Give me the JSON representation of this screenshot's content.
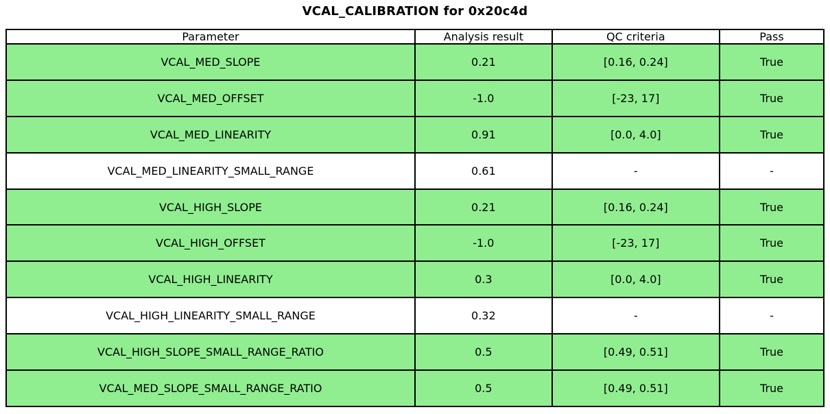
{
  "title": "VCAL_CALIBRATION for 0x20c4d",
  "colors": {
    "pass_row_bg": "#90ee90",
    "neutral_row_bg": "#ffffff",
    "border": "#000000",
    "text": "#000000"
  },
  "table": {
    "headers": [
      "Parameter",
      "Analysis result",
      "QC criteria",
      "Pass"
    ],
    "rows": [
      {
        "parameter": "VCAL_MED_SLOPE",
        "analysis_result": "0.21",
        "qc_criteria": "[0.16, 0.24]",
        "pass": "True",
        "highlight": true
      },
      {
        "parameter": "VCAL_MED_OFFSET",
        "analysis_result": "-1.0",
        "qc_criteria": "[-23, 17]",
        "pass": "True",
        "highlight": true
      },
      {
        "parameter": "VCAL_MED_LINEARITY",
        "analysis_result": "0.91",
        "qc_criteria": "[0.0, 4.0]",
        "pass": "True",
        "highlight": true
      },
      {
        "parameter": "VCAL_MED_LINEARITY_SMALL_RANGE",
        "analysis_result": "0.61",
        "qc_criteria": "-",
        "pass": "-",
        "highlight": false
      },
      {
        "parameter": "VCAL_HIGH_SLOPE",
        "analysis_result": "0.21",
        "qc_criteria": "[0.16, 0.24]",
        "pass": "True",
        "highlight": true
      },
      {
        "parameter": "VCAL_HIGH_OFFSET",
        "analysis_result": "-1.0",
        "qc_criteria": "[-23, 17]",
        "pass": "True",
        "highlight": true
      },
      {
        "parameter": "VCAL_HIGH_LINEARITY",
        "analysis_result": "0.3",
        "qc_criteria": "[0.0, 4.0]",
        "pass": "True",
        "highlight": true
      },
      {
        "parameter": "VCAL_HIGH_LINEARITY_SMALL_RANGE",
        "analysis_result": "0.32",
        "qc_criteria": "-",
        "pass": "-",
        "highlight": false
      },
      {
        "parameter": "VCAL_HIGH_SLOPE_SMALL_RANGE_RATIO",
        "analysis_result": "0.5",
        "qc_criteria": "[0.49, 0.51]",
        "pass": "True",
        "highlight": true
      },
      {
        "parameter": "VCAL_MED_SLOPE_SMALL_RANGE_RATIO",
        "analysis_result": "0.5",
        "qc_criteria": "[0.49, 0.51]",
        "pass": "True",
        "highlight": true
      }
    ]
  },
  "chart_data": {
    "type": "table",
    "title": "VCAL_CALIBRATION for 0x20c4d",
    "columns": [
      "Parameter",
      "Analysis result",
      "QC criteria",
      "Pass"
    ],
    "rows": [
      [
        "VCAL_MED_SLOPE",
        "0.21",
        "[0.16, 0.24]",
        "True"
      ],
      [
        "VCAL_MED_OFFSET",
        "-1.0",
        "[-23, 17]",
        "True"
      ],
      [
        "VCAL_MED_LINEARITY",
        "0.91",
        "[0.0, 4.0]",
        "True"
      ],
      [
        "VCAL_MED_LINEARITY_SMALL_RANGE",
        "0.61",
        "-",
        "-"
      ],
      [
        "VCAL_HIGH_SLOPE",
        "0.21",
        "[0.16, 0.24]",
        "True"
      ],
      [
        "VCAL_HIGH_OFFSET",
        "-1.0",
        "[-23, 17]",
        "True"
      ],
      [
        "VCAL_HIGH_LINEARITY",
        "0.3",
        "[0.0, 4.0]",
        "True"
      ],
      [
        "VCAL_HIGH_LINEARITY_SMALL_RANGE",
        "0.32",
        "-",
        "-"
      ],
      [
        "VCAL_HIGH_SLOPE_SMALL_RANGE_RATIO",
        "0.5",
        "[0.49, 0.51]",
        "True"
      ],
      [
        "VCAL_MED_SLOPE_SMALL_RANGE_RATIO",
        "0.5",
        "[0.49, 0.51]",
        "True"
      ]
    ],
    "row_highlight_flags": [
      true,
      true,
      true,
      false,
      true,
      true,
      true,
      false,
      true,
      true
    ],
    "legend_position": "none",
    "grid": true
  }
}
